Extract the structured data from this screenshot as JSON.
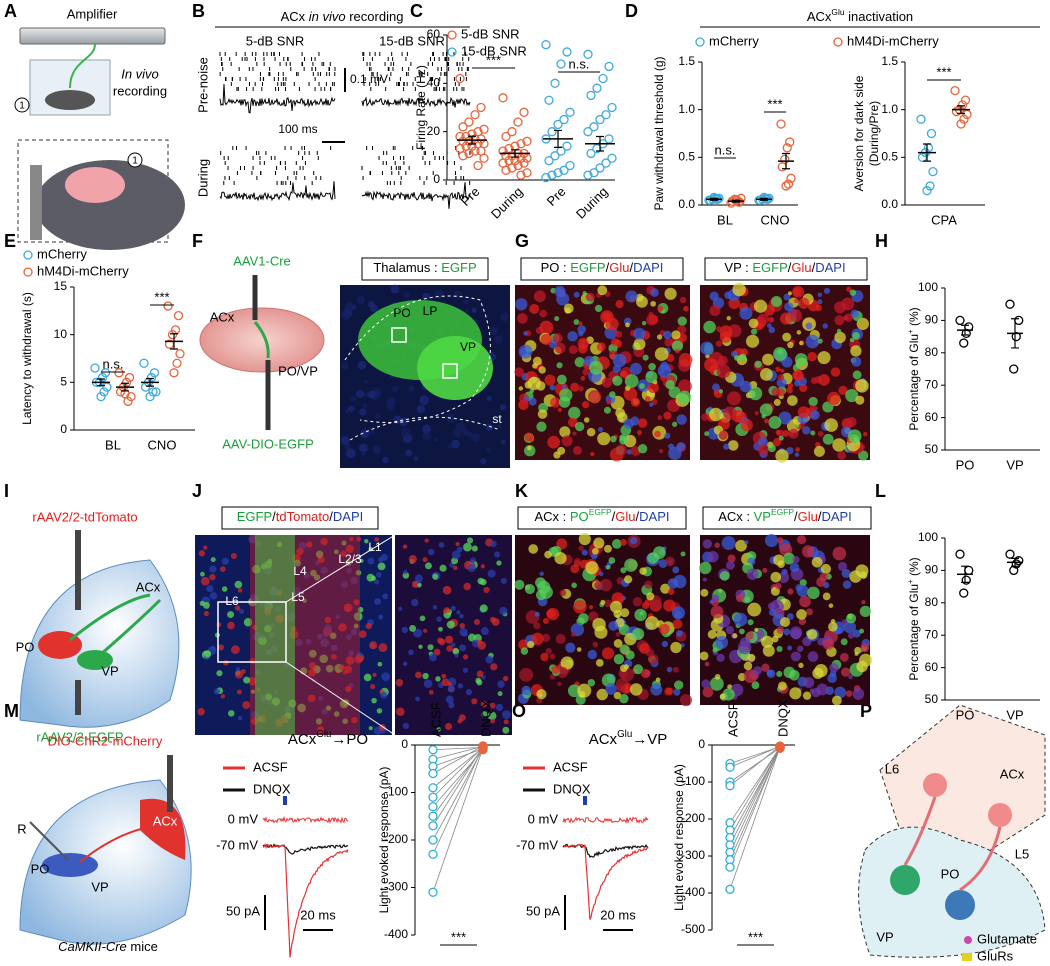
{
  "panel_labels": [
    "A",
    "B",
    "C",
    "D",
    "E",
    "F",
    "G",
    "H",
    "I",
    "J",
    "K",
    "L",
    "M",
    "N",
    "O",
    "P"
  ],
  "A": {
    "amplifier": "Amplifier",
    "in_vivo": "In vivo",
    "recording": "recording",
    "marker_top": "1",
    "marker_inset": "1"
  },
  "B": {
    "title": [
      {
        "t": "ACx "
      },
      {
        "t": "in vivo",
        "italic": true
      },
      {
        "t": " recording"
      }
    ],
    "columns": [
      "5-dB SNR",
      "15-dB SNR"
    ],
    "rows": [
      "Pre-noise",
      "During"
    ],
    "scale_voltage": "0.1 mV",
    "scale_time": "100 ms"
  },
  "C": {
    "chart": {
      "type": "scatter",
      "ylabel": "Firing Rate (Hz)",
      "ylim": [
        0,
        60
      ],
      "yticks": [
        0,
        20,
        40,
        60
      ],
      "categories": [
        "Pre",
        "During",
        "Pre",
        "During"
      ],
      "series": [
        {
          "name": "5-dB SNR",
          "color": "#e8643c",
          "points": [
            [
              42,
              30,
              27,
              24,
              22,
              21,
              20,
              19,
              18,
              18,
              17,
              17,
              16,
              16,
              15,
              15,
              14,
              14,
              13,
              12,
              12,
              11,
              10,
              9,
              6
            ],
            [
              34,
              28,
              24,
              20,
              18,
              16,
              15,
              14,
              13,
              12,
              11,
              11,
              10,
              10,
              9,
              9,
              8,
              8,
              7,
              7,
              6,
              5,
              4,
              3,
              2
            ],
            null,
            null
          ],
          "mean": [
            16.5,
            11,
            null,
            null
          ],
          "sem": [
            1.6,
            1.5,
            null,
            null
          ]
        },
        {
          "name": "15-dB SNR",
          "color": "#3fa9dc",
          "points": [
            null,
            null,
            [
              56,
              53,
              48,
              40,
              33,
              28,
              25,
              23,
              20,
              17,
              14,
              12,
              10,
              8,
              6,
              4,
              3,
              2,
              1
            ],
            [
              52,
              47,
              42,
              38,
              35,
              30,
              27,
              25,
              22,
              20,
              17,
              15,
              13,
              11,
              9,
              7,
              5,
              3,
              2
            ]
          ],
          "mean": [
            null,
            null,
            17,
            15
          ],
          "sem": [
            null,
            null,
            3.5,
            3
          ]
        }
      ],
      "annotations": [
        "***",
        "n.s."
      ]
    }
  },
  "D": {
    "title": [
      {
        "t": "ACx"
      },
      {
        "t": "Glu",
        "sup": true
      },
      {
        "t": " inactivation"
      }
    ],
    "left": {
      "type": "scatter",
      "ylabel": "Paw withdrawal threshold (g)",
      "ylim": [
        0,
        1.5
      ],
      "yticks": [
        {
          "value": 0,
          "label": "0.0"
        },
        0.5,
        {
          "value": 1,
          "label": "1.0"
        },
        1.5
      ],
      "categories": [
        "BL",
        "CNO"
      ],
      "series": [
        {
          "name": "mCherry",
          "color": "#3fa9dc",
          "points": [
            [
              0.05,
              0.06,
              0.07,
              0.06,
              0.05,
              0.07,
              0.06,
              0.08
            ],
            [
              0.05,
              0.06,
              0.07,
              0.06,
              0.05,
              0.07,
              0.06,
              0.08
            ]
          ],
          "mean": [
            0.06,
            0.06
          ],
          "sem": [
            0.01,
            0.01
          ]
        },
        {
          "name": "hM4Di-mCherry",
          "color": "#e8643c",
          "points": [
            [
              0.02,
              0.03,
              0.05,
              0.06,
              0.04,
              0.07,
              0.03,
              0.05
            ],
            [
              0.85,
              0.66,
              0.6,
              0.48,
              0.4,
              0.28,
              0.22,
              0.2
            ]
          ],
          "mean": [
            0.04,
            0.46
          ],
          "sem": [
            0.01,
            0.08
          ]
        }
      ],
      "annotations": [
        "n.s.",
        "***"
      ]
    },
    "right": {
      "type": "scatter",
      "ylabel": [
        "Aversion for dark side",
        "(During/Pre)"
      ],
      "ylim": [
        0,
        1.5
      ],
      "yticks": [
        {
          "value": 0,
          "label": "0.0"
        },
        0.5,
        {
          "value": 1,
          "label": "1.0"
        },
        1.5
      ],
      "categories": [
        "CPA"
      ],
      "series": [
        {
          "color": "#3fa9dc",
          "points": [
            [
              0.9,
              0.75,
              0.6,
              0.55,
              0.5,
              0.35,
              0.2,
              0.15
            ]
          ],
          "mean": [
            0.55
          ],
          "sem": [
            0.09
          ]
        },
        {
          "color": "#e8643c",
          "points": [
            [
              1.2,
              1.1,
              1.05,
              1.0,
              0.98,
              0.95,
              0.9,
              0.85
            ]
          ],
          "mean": [
            1.0
          ],
          "sem": [
            0.04
          ]
        }
      ],
      "annotations": [
        "***"
      ]
    }
  },
  "E": {
    "chart": {
      "type": "scatter",
      "ylabel": "Latency to withdrawal (s)",
      "ylim": [
        0,
        15
      ],
      "yticks": [
        0,
        5,
        10,
        15
      ],
      "categories": [
        "BL",
        "CNO"
      ],
      "series": [
        {
          "name": "mCherry",
          "color": "#3fa9dc",
          "points": [
            [
              6.5,
              6,
              5.5,
              5,
              5,
              4.5,
              4,
              3.5
            ],
            [
              7,
              6,
              5.5,
              5,
              4.5,
              4,
              4,
              3.5
            ]
          ],
          "mean": [
            5,
            5
          ],
          "sem": [
            0.35,
            0.4
          ]
        },
        {
          "name": "hM4Di-mCherry",
          "color": "#e8643c",
          "points": [
            [
              6,
              5.5,
              5,
              4.5,
              4,
              3.5,
              3,
              3.8
            ],
            [
              13,
              12,
              10.5,
              10,
              9,
              8,
              7,
              6
            ]
          ],
          "mean": [
            4.5,
            9.3
          ],
          "sem": [
            0.4,
            0.8
          ]
        }
      ],
      "annotations": [
        "n.s.",
        "***"
      ]
    }
  },
  "F": {
    "injection_top": "AAV1-Cre",
    "acx": "ACx",
    "target": "PO/VP",
    "injection_bottom": "AAV-DIO-EGFP",
    "image_title": [
      {
        "t": "Thalamus : "
      },
      {
        "t": "EGFP",
        "color": "#1a9e3a"
      }
    ],
    "regions": [
      "LP",
      "PO",
      "VP",
      "st"
    ]
  },
  "G": {
    "image_titles": [
      [
        {
          "t": "PO : "
        },
        {
          "t": "EGFP",
          "color": "#1a9e3a"
        },
        {
          "t": "/"
        },
        {
          "t": "Glu",
          "color": "#e0201c"
        },
        {
          "t": "/"
        },
        {
          "t": "DAPI",
          "color": "#1f3fa8"
        }
      ],
      [
        {
          "t": "VP : "
        },
        {
          "t": "EGFP",
          "color": "#1a9e3a"
        },
        {
          "t": "/"
        },
        {
          "t": "Glu",
          "color": "#e0201c"
        },
        {
          "t": "/"
        },
        {
          "t": "DAPI",
          "color": "#1f3fa8"
        }
      ]
    ]
  },
  "H": {
    "chart": {
      "type": "scatter",
      "ylabel": [
        {
          "t": "Percentage of Glu"
        },
        {
          "t": "+",
          "sup": true
        },
        {
          "t": " (%)"
        }
      ],
      "ylim": [
        50,
        100
      ],
      "yticks": [
        50,
        60,
        70,
        80,
        90,
        100
      ],
      "categories": [
        "PO",
        "VP"
      ],
      "series": [
        {
          "color": "#000000",
          "points": [
            [
              90,
              88,
              86,
              83
            ],
            [
              95,
              90,
              85,
              75
            ]
          ],
          "mean": [
            87,
            86
          ],
          "sem": [
            1.5,
            4.5
          ]
        }
      ]
    }
  },
  "I": {
    "injection_top": "rAAV2/2-tdTomato",
    "acx": "ACx",
    "po": "PO",
    "vp": "VP",
    "injection_bottom": "rAAV2/2-EGFP"
  },
  "J": {
    "image_title": [
      {
        "t": "EGFP",
        "color": "#1a9e3a"
      },
      {
        "t": "/"
      },
      {
        "t": "tdTomato",
        "color": "#e0201c"
      },
      {
        "t": "/"
      },
      {
        "t": "DAPI",
        "color": "#1f3fa8"
      }
    ],
    "layers": [
      "L1",
      "L2/3",
      "L4",
      "L5",
      "L6"
    ]
  },
  "K": {
    "image_titles": [
      [
        {
          "t": "ACx : "
        },
        {
          "t": "PO",
          "color": "#1a9e3a"
        },
        {
          "t": "EGFP",
          "sup": true,
          "color": "#1a9e3a"
        },
        {
          "t": "/"
        },
        {
          "t": "Glu",
          "color": "#e0201c"
        },
        {
          "t": "/"
        },
        {
          "t": "DAPI",
          "color": "#1f3fa8"
        }
      ],
      [
        {
          "t": "ACx : "
        },
        {
          "t": "VP",
          "color": "#1a9e3a"
        },
        {
          "t": "EGFP",
          "sup": true,
          "color": "#1a9e3a"
        },
        {
          "t": "/"
        },
        {
          "t": "Glu",
          "color": "#e0201c"
        },
        {
          "t": "/"
        },
        {
          "t": "DAPI",
          "color": "#1f3fa8"
        }
      ]
    ]
  },
  "L": {
    "chart": {
      "type": "scatter",
      "ylabel": [
        {
          "t": "Percentage of Glu"
        },
        {
          "t": "+",
          "sup": true
        },
        {
          "t": " (%)"
        }
      ],
      "ylim": [
        50,
        100
      ],
      "yticks": [
        50,
        60,
        70,
        80,
        90,
        100
      ],
      "categories": [
        "PO",
        "VP"
      ],
      "series": [
        {
          "color": "#000000",
          "points": [
            [
              95,
              90,
              87,
              83
            ],
            [
              95,
              93,
              92,
              90
            ]
          ],
          "mean": [
            88.8,
            92.5
          ],
          "sem": [
            2.5,
            1.2
          ]
        }
      ]
    }
  },
  "M": {
    "injection": "DIO-ChR2-mCherry",
    "acx": "ACx",
    "electrode": "R",
    "po": "PO",
    "vp": "VP",
    "mice": [
      {
        "t": "CaMKII-Cre",
        "italic": true
      },
      {
        "t": " mice"
      }
    ]
  },
  "N": {
    "title": [
      {
        "t": "ACx"
      },
      {
        "t": "Glu",
        "sup": true
      },
      {
        "t": "→PO"
      }
    ],
    "legend": [
      "ACSF",
      "DNQX"
    ],
    "trace_colors": [
      "#e8312f",
      "#111111"
    ],
    "holding": [
      "0 mV",
      "-70 mV"
    ],
    "scale_current": "50 pA",
    "scale_time": "20 ms",
    "chart": {
      "type": "paired",
      "ylabel": "Light evoked response (pA)",
      "ylim": [
        -400,
        0
      ],
      "yticks": [
        0,
        -100,
        -200,
        -300,
        -400
      ],
      "categories": [
        "ACSF",
        "DNQX"
      ],
      "series": [
        {
          "color": "#2ab0d8",
          "values": [
            -10,
            -30,
            -45,
            -60,
            -90,
            -110,
            -130,
            -150,
            -170,
            -200,
            -230,
            -310
          ]
        },
        {
          "color": "#e8643c",
          "values": [
            -5,
            -3,
            -8,
            -2,
            -6,
            -4,
            -10,
            -5,
            -3,
            -7,
            -4,
            -6
          ]
        }
      ],
      "annotations": [
        "***"
      ]
    }
  },
  "O": {
    "title": [
      {
        "t": "ACx"
      },
      {
        "t": "Glu",
        "sup": true
      },
      {
        "t": "→VP"
      }
    ],
    "legend": [
      "ACSF",
      "DNQX"
    ],
    "trace_colors": [
      "#e8312f",
      "#111111"
    ],
    "holding": [
      "0 mV",
      "-70 mV"
    ],
    "scale_current": "50 pA",
    "scale_time": "20 ms",
    "chart": {
      "type": "paired",
      "ylabel": "Light evoked response (pA)",
      "ylim": [
        -500,
        0
      ],
      "yticks": [
        0,
        -100,
        -200,
        -300,
        -400,
        -500
      ],
      "categories": [
        "ACSF",
        "DNQX"
      ],
      "series": [
        {
          "color": "#2ab0d8",
          "values": [
            -50,
            -60,
            -100,
            -110,
            -210,
            -230,
            -250,
            -270,
            -290,
            -310,
            -330,
            -390
          ]
        },
        {
          "color": "#e8643c",
          "values": [
            -5,
            -4,
            -8,
            -3,
            -6,
            -5,
            -9,
            -4,
            -3,
            -7,
            -5,
            -6
          ]
        }
      ],
      "annotations": [
        "***"
      ]
    }
  },
  "P": {
    "labels": [
      "L6",
      "ACx",
      "L5",
      "PO",
      "VP"
    ],
    "legend": [
      "Glutamate",
      "GluRs"
    ]
  }
}
